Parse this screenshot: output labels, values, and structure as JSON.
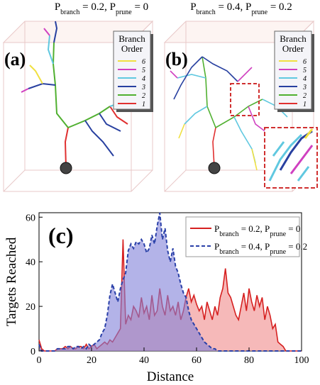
{
  "panel_a": {
    "label": "(a)",
    "title": [
      {
        "text": "P"
      },
      {
        "sub": "branch"
      },
      {
        "text": " = 0.2, P"
      },
      {
        "sub": "prune"
      },
      {
        "text": " = 0"
      }
    ]
  },
  "panel_b": {
    "label": "(b)",
    "title": [
      {
        "text": "P"
      },
      {
        "sub": "branch"
      },
      {
        "text": " = 0.4, P"
      },
      {
        "sub": "prune"
      },
      {
        "text": " = 0.2"
      }
    ]
  },
  "branch_legend": {
    "title": [
      "Branch",
      "Order"
    ],
    "items": [
      {
        "label": "6",
        "color": "#f0e040"
      },
      {
        "label": "5",
        "color": "#d040c0"
      },
      {
        "label": "4",
        "color": "#60c8e0"
      },
      {
        "label": "3",
        "color": "#2840a0"
      },
      {
        "label": "2",
        "color": "#50b030"
      },
      {
        "label": "1",
        "color": "#e03030"
      }
    ]
  },
  "chart_data": {
    "type": "area",
    "panel_label": "(c)",
    "x_label": "Distance",
    "y_label": "Targets Reached",
    "xlim": [
      0,
      100
    ],
    "ylim": [
      0,
      62
    ],
    "xticks": [
      0,
      20,
      40,
      60,
      80,
      100
    ],
    "yticks": [
      0,
      20,
      40,
      60
    ],
    "legend": "upper right",
    "x": [
      0,
      1,
      2,
      3,
      4,
      5,
      6,
      7,
      8,
      9,
      10,
      11,
      12,
      13,
      14,
      15,
      16,
      17,
      18,
      19,
      20,
      21,
      22,
      23,
      24,
      25,
      26,
      27,
      28,
      29,
      30,
      31,
      32,
      33,
      34,
      35,
      36,
      37,
      38,
      39,
      40,
      41,
      42,
      43,
      44,
      45,
      46,
      47,
      48,
      49,
      50,
      51,
      52,
      53,
      54,
      55,
      56,
      57,
      58,
      59,
      60,
      61,
      62,
      63,
      64,
      65,
      66,
      67,
      68,
      69,
      70,
      71,
      72,
      73,
      74,
      75,
      76,
      77,
      78,
      79,
      80,
      81,
      82,
      83,
      84,
      85,
      86,
      87,
      88,
      89,
      90,
      91,
      92,
      93,
      94,
      95,
      96,
      97,
      98,
      99,
      100
    ],
    "series": [
      {
        "name": [
          {
            "text": "P"
          },
          {
            "sub": "branch"
          },
          {
            "text": " = 0.2, P"
          },
          {
            "sub": "prune"
          },
          {
            "text": " = 0"
          }
        ],
        "color": "#d62020",
        "fill": "#f08a8a",
        "line_style": "solid",
        "values": [
          5,
          1,
          0,
          0,
          0,
          0,
          0,
          1,
          1,
          1,
          2,
          1,
          2,
          1,
          1,
          2,
          2,
          1,
          3,
          1,
          2,
          3,
          1,
          2,
          3,
          4,
          3,
          5,
          4,
          6,
          8,
          10,
          50,
          12,
          16,
          14,
          20,
          18,
          15,
          24,
          17,
          20,
          14,
          25,
          16,
          18,
          28,
          20,
          16,
          25,
          18,
          20,
          16,
          22,
          14,
          18,
          24,
          28,
          22,
          25,
          21,
          18,
          20,
          14,
          22,
          18,
          14,
          20,
          16,
          24,
          28,
          37,
          26,
          24,
          20,
          16,
          14,
          20,
          26,
          18,
          28,
          22,
          18,
          25,
          20,
          24,
          14,
          20,
          16,
          10,
          12,
          4,
          3,
          2,
          0,
          0,
          0,
          0,
          0,
          0,
          0
        ]
      },
      {
        "name": [
          {
            "text": "P"
          },
          {
            "sub": "branch"
          },
          {
            "text": " = 0.4, P"
          },
          {
            "sub": "prune"
          },
          {
            "text": " = 0.2"
          }
        ],
        "color": "#2a40a8",
        "fill": "#8080d8",
        "line_style": "dashed",
        "values": [
          3,
          0,
          0,
          0,
          0,
          0,
          0,
          1,
          1,
          1,
          1,
          2,
          2,
          1,
          2,
          2,
          1,
          2,
          1,
          3,
          2,
          3,
          4,
          5,
          8,
          10,
          16,
          25,
          30,
          26,
          22,
          28,
          32,
          35,
          45,
          48,
          46,
          49,
          48,
          50,
          48,
          44,
          46,
          52,
          48,
          56,
          62,
          50,
          55,
          45,
          40,
          46,
          38,
          35,
          30,
          26,
          24,
          18,
          14,
          12,
          10,
          8,
          6,
          4,
          3,
          2,
          1,
          1,
          0,
          0,
          0,
          0,
          0,
          0,
          0,
          0,
          0,
          0,
          0,
          0,
          0,
          0,
          0,
          0,
          0,
          0,
          0,
          0,
          0,
          0,
          0,
          0,
          0,
          0,
          0,
          0,
          0,
          0,
          0,
          0,
          0
        ]
      }
    ]
  }
}
